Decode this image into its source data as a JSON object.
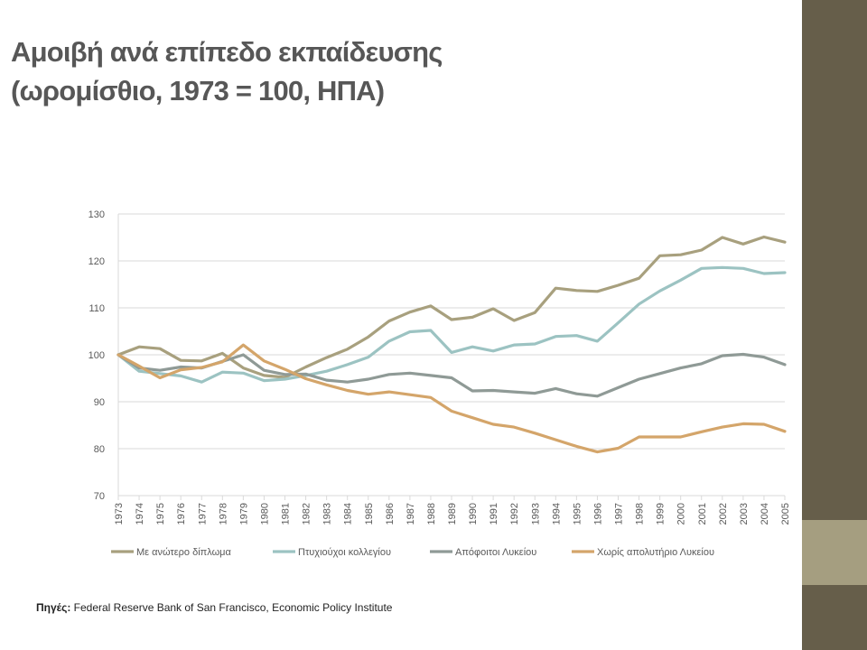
{
  "slide": {
    "title_line1": "Αμοιβή ανά επίπεδο εκπαίδευσης",
    "title_line2": "(ωρομίσθιο, 1973 = 100, ΗΠΑ)",
    "source_label": "Πηγές:",
    "source_text": " Federal Reserve Bank of San Francisco, Economic Policy Institute"
  },
  "colors": {
    "sidebar": "#665e4a",
    "sidebar_band": "#a59e80",
    "grid": "#d9d9d9",
    "axis_text": "#595959"
  },
  "chart_data": {
    "type": "line",
    "x": [
      "1973",
      "1974",
      "1975",
      "1976",
      "1977",
      "1978",
      "1979",
      "1980",
      "1981",
      "1982",
      "1983",
      "1984",
      "1985",
      "1986",
      "1987",
      "1988",
      "1989",
      "1990",
      "1991",
      "1992",
      "1993",
      "1994",
      "1995",
      "1996",
      "1997",
      "1998",
      "1999",
      "2000",
      "2001",
      "2002",
      "2003",
      "2004",
      "2005"
    ],
    "ylim": [
      70,
      130
    ],
    "yticks": [
      70,
      80,
      90,
      100,
      110,
      120,
      130
    ],
    "grid": true,
    "legend_position": "bottom",
    "series": [
      {
        "name": "Με ανώτερο δίπλωμα",
        "color": "#a8a07e",
        "values": [
          100,
          101.7,
          101.3,
          98.8,
          98.7,
          100.3,
          97.2,
          95.6,
          95.2,
          97.4,
          99.4,
          101.2,
          103.8,
          107.2,
          109.1,
          110.4,
          107.5,
          108.0,
          109.8,
          107.3,
          109.0,
          114.2,
          113.7,
          113.5,
          114.8,
          116.3,
          121.1,
          121.3,
          122.3,
          125.0,
          123.6,
          125.1,
          124.0
        ]
      },
      {
        "name": "Πτυχιούχοι κολλεγίου",
        "color": "#9cc3c2",
        "values": [
          100,
          96.5,
          96.0,
          95.5,
          94.2,
          96.3,
          96.1,
          94.5,
          94.8,
          95.6,
          96.5,
          97.9,
          99.5,
          102.9,
          104.9,
          105.2,
          100.5,
          101.7,
          100.8,
          102.1,
          102.3,
          103.9,
          104.1,
          102.9,
          106.8,
          110.8,
          113.6,
          115.9,
          118.4,
          118.6,
          118.4,
          117.3,
          117.5
        ]
      },
      {
        "name": "Απόφοιτοι Λυκείου",
        "color": "#8f9a96",
        "values": [
          100,
          97.2,
          96.7,
          97.4,
          97.2,
          98.6,
          100.0,
          96.7,
          95.8,
          95.9,
          94.6,
          94.2,
          94.8,
          95.8,
          96.1,
          95.6,
          95.1,
          92.3,
          92.4,
          92.1,
          91.8,
          92.8,
          91.7,
          91.2,
          93.0,
          94.8,
          96.0,
          97.2,
          98.1,
          99.8,
          100.1,
          99.5,
          97.9
        ]
      },
      {
        "name": "Χωρίς απολυτήριο Λυκείου",
        "color": "#d4a56a",
        "values": [
          100,
          97.6,
          95.1,
          96.8,
          97.3,
          98.5,
          102.1,
          98.7,
          96.9,
          94.9,
          93.6,
          92.4,
          91.6,
          92.1,
          91.5,
          90.9,
          88.0,
          86.6,
          85.2,
          84.6,
          83.3,
          81.9,
          80.5,
          79.3,
          80.1,
          82.5,
          82.5,
          82.5,
          83.6,
          84.6,
          85.3,
          85.2,
          83.7
        ]
      }
    ]
  }
}
